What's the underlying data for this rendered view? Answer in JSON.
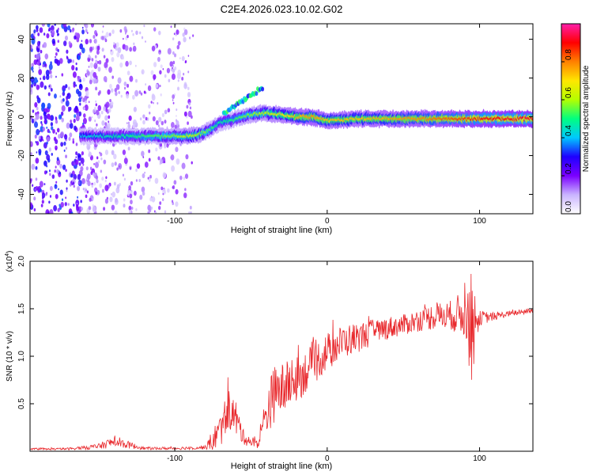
{
  "page_title": "C2E4.2026.023.10.02.G02",
  "chart_data": [
    {
      "type": "heatmap",
      "name": "spectrogram",
      "title": "C2E4.2026.023.10.02.G02",
      "xlabel": "Height of straight line (km)",
      "ylabel": "Frequency (Hz)",
      "xlim": [
        -195,
        135
      ],
      "ylim": [
        -50,
        48
      ],
      "x_ticks": [
        -100,
        0,
        100
      ],
      "x_tick_labels": [
        "-100",
        "0",
        "100"
      ],
      "y_ticks": [
        -40,
        -20,
        0,
        20,
        40
      ],
      "y_tick_labels": [
        "-40",
        "-20",
        "0",
        "20",
        "40"
      ],
      "colorbar": {
        "label": "Normalized spectral amplitude",
        "range": [
          0,
          1
        ],
        "ticks": [
          0.0,
          0.2,
          0.4,
          0.6,
          0.8
        ],
        "tick_labels": [
          "0.0",
          "0.2",
          "0.4",
          "0.6",
          "0.8"
        ],
        "colors": [
          "#ffffff",
          "#c9b4ff",
          "#7b00ff",
          "#1e00ff",
          "#00c8ff",
          "#00ff80",
          "#b4ff00",
          "#ffe600",
          "#ff8000",
          "#ff0000",
          "#ff1eaa"
        ]
      },
      "ridge": {
        "x": [
          -160,
          -140,
          -120,
          -100,
          -90,
          -80,
          -70,
          -60,
          -50,
          -40,
          -30,
          -20,
          -10,
          0,
          20,
          40,
          60,
          80,
          100,
          135
        ],
        "y": [
          -10,
          -10,
          -10,
          -10,
          -10,
          -8,
          -3,
          -1,
          1,
          2,
          1,
          0,
          0,
          -2,
          -1,
          -1,
          -1,
          -1,
          -1,
          -1
        ],
        "amplitude": [
          0.4,
          0.45,
          0.5,
          0.55,
          0.6,
          0.55,
          0.45,
          0.5,
          0.55,
          0.6,
          0.65,
          0.7,
          0.75,
          0.7,
          0.7,
          0.72,
          0.75,
          0.8,
          0.85,
          0.88
        ]
      }
    },
    {
      "type": "line",
      "name": "snr",
      "xlabel": "Height of straight line (km)",
      "ylabel": "SNR (10 * v/v)",
      "y_multiplier": "(x10",
      "y_multiplier_exp": "4",
      "y_multiplier_close": ")",
      "xlim": [
        -195,
        135
      ],
      "ylim": [
        0,
        20000
      ],
      "x_ticks": [
        -100,
        0,
        100
      ],
      "x_tick_labels": [
        "-100",
        "0",
        "100"
      ],
      "y_ticks": [
        5000,
        10000,
        15000,
        20000
      ],
      "y_tick_labels": [
        "0.5",
        "1.0",
        "1.5",
        "2.0"
      ],
      "color": "#e8282c",
      "envelope": {
        "x": [
          -195,
          -170,
          -150,
          -140,
          -120,
          -100,
          -80,
          -75,
          -70,
          -65,
          -60,
          -55,
          -50,
          -45,
          -40,
          -35,
          -30,
          -25,
          -20,
          -10,
          0,
          10,
          20,
          30,
          40,
          50,
          60,
          70,
          80,
          90,
          95,
          100,
          110,
          120,
          135
        ],
        "y": [
          200,
          250,
          500,
          1000,
          300,
          300,
          400,
          1200,
          2200,
          4500,
          3500,
          1500,
          1000,
          800,
          4000,
          6000,
          6500,
          7000,
          7500,
          9000,
          10500,
          11500,
          12000,
          12500,
          13000,
          13300,
          13800,
          14200,
          14300,
          14500,
          13000,
          14000,
          14200,
          14500,
          14800
        ],
        "noise": [
          100,
          120,
          300,
          600,
          150,
          150,
          200,
          1200,
          1800,
          2200,
          2000,
          800,
          600,
          500,
          2500,
          3000,
          2800,
          2600,
          2400,
          2200,
          2000,
          1800,
          1600,
          1400,
          1200,
          1100,
          1200,
          1400,
          1500,
          2500,
          6000,
          800,
          400,
          300,
          300
        ]
      }
    }
  ]
}
